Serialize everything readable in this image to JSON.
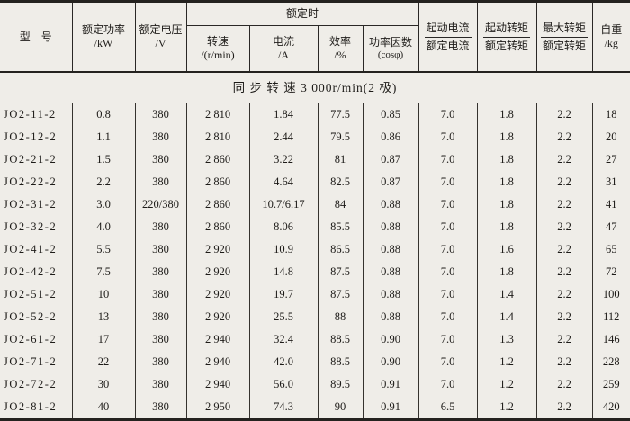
{
  "page_bg": "#efede8",
  "ink_color": "#24221f",
  "table": {
    "header": {
      "model": "型　号",
      "rated_power": {
        "l1": "额定功率",
        "l2": "/kW"
      },
      "rated_voltage": {
        "l1": "额定电压",
        "l2": "/V"
      },
      "rated_condition": "额定时",
      "speed": {
        "l1": "转速",
        "l2": "/(r/min)"
      },
      "current": {
        "l1": "电流",
        "l2": "/A"
      },
      "efficiency": {
        "l1": "效率",
        "l2": "/%"
      },
      "power_factor": {
        "l1": "功率因数",
        "l2": "(cosφ)"
      },
      "starting_current_ratio": {
        "num": "起动电流",
        "den": "额定电流"
      },
      "starting_torque_ratio": {
        "num": "起动转矩",
        "den": "额定转矩"
      },
      "max_torque_ratio": {
        "num": "最大转矩",
        "den": "额定转矩"
      },
      "weight": {
        "l1": "自重",
        "l2": "/kg"
      }
    },
    "group_row": "同 步 转 速 3 000r/min(2 极)",
    "columns": [
      "型号",
      "额定功率/kW",
      "额定电压/V",
      "转速/(r/min)",
      "电流/A",
      "效率/%",
      "功率因数(cosφ)",
      "起动电流/额定电流",
      "起动转矩/额定转矩",
      "最大转矩/额定转矩",
      "自重/kg"
    ],
    "rows": [
      [
        "JO2-11-2",
        "0.8",
        "380",
        "2 810",
        "1.84",
        "77.5",
        "0.85",
        "7.0",
        "1.8",
        "2.2",
        "18"
      ],
      [
        "JO2-12-2",
        "1.1",
        "380",
        "2 810",
        "2.44",
        "79.5",
        "0.86",
        "7.0",
        "1.8",
        "2.2",
        "20"
      ],
      [
        "JO2-21-2",
        "1.5",
        "380",
        "2 860",
        "3.22",
        "81",
        "0.87",
        "7.0",
        "1.8",
        "2.2",
        "27"
      ],
      [
        "JO2-22-2",
        "2.2",
        "380",
        "2 860",
        "4.64",
        "82.5",
        "0.87",
        "7.0",
        "1.8",
        "2.2",
        "31"
      ],
      [
        "JO2-31-2",
        "3.0",
        "220/380",
        "2 860",
        "10.7/6.17",
        "84",
        "0.88",
        "7.0",
        "1.8",
        "2.2",
        "41"
      ],
      [
        "JO2-32-2",
        "4.0",
        "380",
        "2 860",
        "8.06",
        "85.5",
        "0.88",
        "7.0",
        "1.8",
        "2.2",
        "47"
      ],
      [
        "JO2-41-2",
        "5.5",
        "380",
        "2 920",
        "10.9",
        "86.5",
        "0.88",
        "7.0",
        "1.6",
        "2.2",
        "65"
      ],
      [
        "JO2-42-2",
        "7.5",
        "380",
        "2 920",
        "14.8",
        "87.5",
        "0.88",
        "7.0",
        "1.8",
        "2.2",
        "72"
      ],
      [
        "JO2-51-2",
        "10",
        "380",
        "2 920",
        "19.7",
        "87.5",
        "0.88",
        "7.0",
        "1.4",
        "2.2",
        "100"
      ],
      [
        "JO2-52-2",
        "13",
        "380",
        "2 920",
        "25.5",
        "88",
        "0.88",
        "7.0",
        "1.4",
        "2.2",
        "112"
      ],
      [
        "JO2-61-2",
        "17",
        "380",
        "2 940",
        "32.4",
        "88.5",
        "0.90",
        "7.0",
        "1.3",
        "2.2",
        "146"
      ],
      [
        "JO2-71-2",
        "22",
        "380",
        "2 940",
        "42.0",
        "88.5",
        "0.90",
        "7.0",
        "1.2",
        "2.2",
        "228"
      ],
      [
        "JO2-72-2",
        "30",
        "380",
        "2 940",
        "56.0",
        "89.5",
        "0.91",
        "7.0",
        "1.2",
        "2.2",
        "259"
      ],
      [
        "JO2-81-2",
        "40",
        "380",
        "2 950",
        "74.3",
        "90",
        "0.91",
        "6.5",
        "1.2",
        "2.2",
        "420"
      ]
    ]
  }
}
